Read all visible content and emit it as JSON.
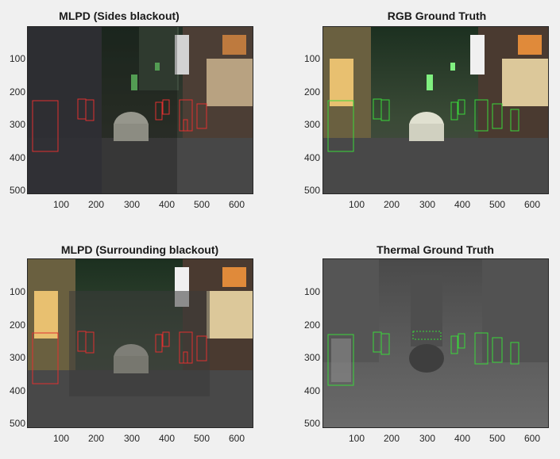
{
  "panels": [
    {
      "title": "MLPD (Sides blackout)",
      "image_type": "rgb",
      "box_color": "#e03030",
      "y_ticks": [
        "100",
        "200",
        "300",
        "400",
        "500"
      ],
      "x_ticks": [
        "100",
        "200",
        "300",
        "400",
        "500",
        "600"
      ],
      "boxes": [
        {
          "label": "pedestrian"
        },
        {
          "label": "pedestrian"
        },
        {
          "label": "pedestrian"
        },
        {
          "label": "pedestrian"
        },
        {
          "label": "pedestrian"
        },
        {
          "label": "pedestrian"
        },
        {
          "label": "pedestrian"
        },
        {
          "label": "pedestrian"
        }
      ]
    },
    {
      "title": "RGB Ground Truth",
      "image_type": "rgb",
      "box_color": "#3ad83a",
      "y_ticks": [
        "100",
        "200",
        "300",
        "400",
        "500"
      ],
      "x_ticks": [
        "100",
        "200",
        "300",
        "400",
        "500",
        "600"
      ],
      "boxes": [
        {
          "label": "pedestrian"
        },
        {
          "label": "pedestrian"
        },
        {
          "label": "pedestrian"
        },
        {
          "label": "pedestrian"
        },
        {
          "label": "pedestrian"
        },
        {
          "label": "pedestrian"
        },
        {
          "label": "pedestrian"
        },
        {
          "label": "pedestrian"
        }
      ]
    },
    {
      "title": "MLPD (Surrounding blackout)",
      "image_type": "rgb",
      "box_color": "#e03030",
      "y_ticks": [
        "100",
        "200",
        "300",
        "400",
        "500"
      ],
      "x_ticks": [
        "100",
        "200",
        "300",
        "400",
        "500",
        "600"
      ],
      "boxes": [
        {
          "label": "pedestrian"
        },
        {
          "label": "pedestrian"
        },
        {
          "label": "pedestrian"
        },
        {
          "label": "pedestrian"
        },
        {
          "label": "pedestrian"
        },
        {
          "label": "pedestrian"
        },
        {
          "label": "pedestrian"
        },
        {
          "label": "pedestrian"
        }
      ]
    },
    {
      "title": "Thermal Ground Truth",
      "image_type": "thermal",
      "box_color": "#3ad83a",
      "y_ticks": [
        "100",
        "200",
        "300",
        "400",
        "500"
      ],
      "x_ticks": [
        "100",
        "200",
        "300",
        "400",
        "500",
        "600"
      ],
      "boxes": [
        {
          "label": "pedestrian"
        },
        {
          "label": "pedestrian"
        },
        {
          "label": "pedestrian"
        },
        {
          "label": "pedestrian"
        },
        {
          "label": "pedestrian"
        },
        {
          "label": "pedestrian"
        },
        {
          "label": "pedestrian"
        },
        {
          "label": "pedestrian"
        },
        {
          "label": "ignore"
        }
      ]
    }
  ]
}
